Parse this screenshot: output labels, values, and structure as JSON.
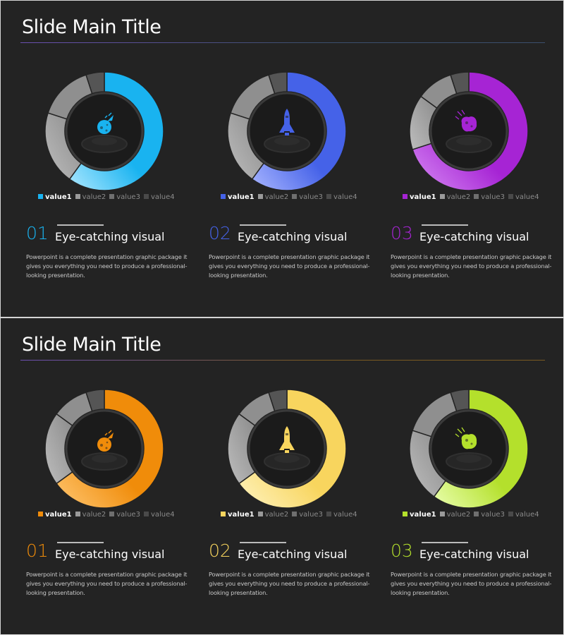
{
  "slides": [
    {
      "title": "Slide Main Title",
      "rule_color": "#3c4f6e",
      "panels": [
        {
          "number": "01",
          "color": "#19b3f0",
          "color_light": "#aee8ff",
          "icon": "planet-rocket-icon",
          "heading": "Eye-catching visual",
          "body": "Powerpoint is a complete presentation graphic package it gives you everything you need to produce a professional-looking presentation."
        },
        {
          "number": "02",
          "color": "#4562e8",
          "color_light": "#a9b6ff",
          "icon": "space-shuttle-icon",
          "heading": "Eye-catching visual",
          "body": "Powerpoint is a complete presentation graphic package it gives you everything you need to produce a professional-looking presentation."
        },
        {
          "number": "03",
          "color": "#a624d4",
          "color_light": "#d78cf5",
          "icon": "meteor-icon",
          "heading": "Eye-catching visual",
          "body": "Powerpoint is a complete presentation graphic package it gives you everything you need to produce a professional-looking presentation."
        }
      ]
    },
    {
      "title": "Slide Main Title",
      "rule_color": "#7a5a22",
      "panels": [
        {
          "number": "01",
          "color": "#f08c0a",
          "color_light": "#ffc773",
          "icon": "planet-rocket-icon",
          "heading": "Eye-catching visual",
          "body": "Powerpoint is a complete presentation graphic package it gives you everything you need to produce a professional-looking presentation."
        },
        {
          "number": "02",
          "color": "#f8d55e",
          "color_light": "#fff4c2",
          "icon": "space-shuttle-icon",
          "heading": "Eye-catching visual",
          "body": "Powerpoint is a complete presentation graphic package it gives you everything you need to produce a professional-looking presentation."
        },
        {
          "number": "03",
          "color": "#b4e02c",
          "color_light": "#eaffb0",
          "icon": "meteor-icon",
          "heading": "Eye-catching visual",
          "body": "Powerpoint is a complete presentation graphic package it gives you everything you need to produce a professional-looking presentation."
        }
      ]
    }
  ],
  "legend_labels": [
    "value1",
    "value2",
    "value3",
    "value4"
  ],
  "gray_colors": [
    "#c9c9c9",
    "#8f8f8f",
    "#555555"
  ],
  "chart_data": [
    {
      "type": "pie",
      "categories": [
        "value1",
        "value2",
        "value3",
        "value4"
      ],
      "values": [
        60,
        20,
        15,
        5
      ]
    },
    {
      "type": "pie",
      "categories": [
        "value1",
        "value2",
        "value3",
        "value4"
      ],
      "values": [
        60,
        20,
        15,
        5
      ]
    },
    {
      "type": "pie",
      "categories": [
        "value1",
        "value2",
        "value3",
        "value4"
      ],
      "values": [
        70,
        15,
        10,
        5
      ]
    },
    {
      "type": "pie",
      "categories": [
        "value1",
        "value2",
        "value3",
        "value4"
      ],
      "values": [
        65,
        20,
        10,
        5
      ]
    },
    {
      "type": "pie",
      "categories": [
        "value1",
        "value2",
        "value3",
        "value4"
      ],
      "values": [
        65,
        20,
        10,
        5
      ]
    },
    {
      "type": "pie",
      "categories": [
        "value1",
        "value2",
        "value3",
        "value4"
      ],
      "values": [
        60,
        20,
        15,
        5
      ]
    }
  ]
}
